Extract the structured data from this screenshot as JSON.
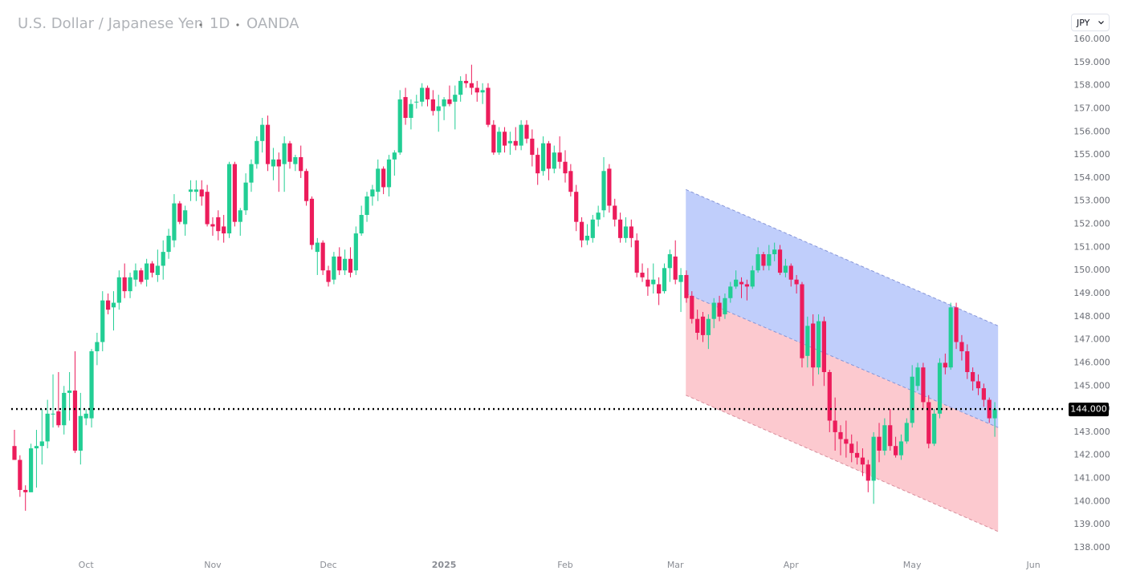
{
  "chart_data": {
    "type": "candlestick",
    "title": "U.S. Dollar / Japanese Yen",
    "interval": "1D",
    "source": "OANDA",
    "currency": "JPY",
    "up_color": "#22ce94",
    "down_color": "#ec1c5b",
    "grid": false,
    "categories": [
      null,
      null,
      null,
      null,
      null,
      null,
      null,
      null,
      null,
      null,
      null,
      null,
      null,
      "Oct",
      null,
      null,
      null,
      null,
      null,
      null,
      null,
      null,
      null,
      null,
      null,
      null,
      null,
      null,
      null,
      null,
      null,
      null,
      null,
      null,
      null,
      null,
      "Nov",
      null,
      null,
      null,
      null,
      null,
      null,
      null,
      null,
      null,
      null,
      null,
      null,
      null,
      null,
      null,
      null,
      null,
      null,
      null,
      null,
      "Dec",
      null,
      null,
      null,
      null,
      null,
      null,
      null,
      null,
      null,
      null,
      null,
      null,
      null,
      null,
      null,
      null,
      null,
      null,
      null,
      null,
      "2025",
      null,
      null,
      null,
      null,
      null,
      null,
      null,
      null,
      null,
      null,
      null,
      null,
      null,
      null,
      null,
      null,
      null,
      null,
      null,
      null,
      null,
      "Feb",
      null,
      null,
      null,
      null,
      null,
      null,
      null,
      null,
      null,
      null,
      null,
      null,
      null,
      null,
      null,
      null,
      null,
      null,
      null,
      "Mar",
      null,
      null,
      null,
      null,
      null,
      null,
      null,
      null,
      null,
      null,
      null,
      null,
      null,
      null,
      null,
      null,
      null,
      null,
      null,
      null,
      "Apr",
      null,
      null,
      null,
      null,
      null,
      null,
      null,
      null,
      null,
      null,
      null,
      null,
      null,
      null,
      null,
      null,
      null,
      null,
      null,
      null,
      null,
      "May",
      null,
      null,
      null,
      null,
      null,
      null,
      null,
      null,
      null,
      null,
      null,
      null,
      null,
      null,
      null,
      null,
      null,
      null,
      null,
      null,
      null,
      "Jun"
    ],
    "open": [
      142.4,
      141.8,
      140.5,
      140.4,
      142.3,
      142.4,
      142.6,
      143.8,
      143.9,
      143.3,
      144.7,
      144.8,
      142.2,
      143.6,
      143.6,
      146.5,
      146.9,
      148.7,
      148.4,
      148.6,
      149.7,
      149.1,
      149.6,
      150.0,
      149.6,
      150.3,
      149.8,
      150.2,
      150.8,
      151.3,
      152.9,
      152.0,
      153.4,
      153.4,
      153.5,
      153.4,
      152.0,
      152.3,
      151.9,
      151.6,
      154.6,
      152.1,
      152.6,
      153.8,
      154.6,
      155.6,
      156.3,
      154.5,
      154.8,
      154.6,
      155.5,
      154.6,
      154.9,
      154.3,
      153.1,
      150.8,
      151.2,
      150.0,
      149.6,
      150.6,
      150.0,
      150.5,
      150.0,
      151.6,
      152.4,
      153.2,
      153.4,
      154.4,
      153.6,
      154.8,
      155.1,
      157.5,
      156.6,
      157.3,
      157.3,
      157.9,
      157.4,
      156.9,
      157.1,
      157.4,
      157.3,
      157.6,
      158.2,
      158.1,
      157.9,
      157.7,
      157.9,
      156.3,
      155.1,
      156.0,
      155.5,
      155.6,
      155.4,
      156.3,
      155.7,
      155.0,
      154.3,
      155.5,
      154.4,
      155.1,
      154.7,
      154.3,
      153.4,
      152.1,
      151.3,
      151.4,
      152.2,
      152.6,
      154.4,
      152.8,
      152.2,
      151.4,
      151.9,
      151.3,
      149.9,
      149.6,
      149.4,
      149.4,
      149.1,
      150.1,
      150.6,
      149.5,
      149.8,
      148.9,
      147.9,
      148.0,
      147.2,
      147.9,
      148.6,
      148.1,
      148.8,
      149.3,
      149.5,
      149.4,
      149.3,
      150.0,
      150.7,
      150.2,
      150.7,
      150.9,
      149.9,
      150.2,
      149.6,
      149.4,
      146.3,
      147.7,
      145.8,
      147.8,
      145.6,
      143.5,
      143.0,
      142.7,
      142.5,
      142.1,
      141.9,
      141.6,
      140.9,
      142.8,
      142.2,
      143.3,
      142.4,
      142.0,
      142.6,
      143.4,
      145.0,
      145.8,
      144.3,
      142.5,
      143.8,
      146.0,
      145.8,
      148.4,
      146.9,
      146.5,
      145.6,
      145.2,
      144.9,
      144.4,
      143.6,
      null,
      null,
      null,
      null,
      null,
      null,
      null
    ],
    "high": [
      143.1,
      142.0,
      140.7,
      142.5,
      143.1,
      144.0,
      144.4,
      145.5,
      145.6,
      145.0,
      145.6,
      146.5,
      144.7,
      144.0,
      146.6,
      147.3,
      149.1,
      149.0,
      149.1,
      150.0,
      150.3,
      149.9,
      150.3,
      150.1,
      150.5,
      150.4,
      150.9,
      151.3,
      151.8,
      153.3,
      153.0,
      152.8,
      153.9,
      153.9,
      153.9,
      153.7,
      152.3,
      152.6,
      152.4,
      154.7,
      154.7,
      152.7,
      154.2,
      154.8,
      155.8,
      156.6,
      156.7,
      155.3,
      155.1,
      155.8,
      155.6,
      155.0,
      155.4,
      154.4,
      153.2,
      151.4,
      151.3,
      150.2,
      150.8,
      151.0,
      150.9,
      151.0,
      151.9,
      152.8,
      153.4,
      153.7,
      154.8,
      154.5,
      155.0,
      155.2,
      157.8,
      157.9,
      157.4,
      157.6,
      158.1,
      158.0,
      157.8,
      157.6,
      157.5,
      158.0,
      158.0,
      158.4,
      158.5,
      158.9,
      158.2,
      158.1,
      158.1,
      156.5,
      156.2,
      156.2,
      156.0,
      156.2,
      156.5,
      156.5,
      156.1,
      155.3,
      155.8,
      155.6,
      155.4,
      155.8,
      155.2,
      154.6,
      153.7,
      152.3,
      152.0,
      152.4,
      152.8,
      154.9,
      154.6,
      153.1,
      152.5,
      152.3,
      152.2,
      151.6,
      150.3,
      150.1,
      150.3,
      149.7,
      150.3,
      150.9,
      151.3,
      150.1,
      150.0,
      149.1,
      148.3,
      148.2,
      148.1,
      148.8,
      148.9,
      149.0,
      149.5,
      150.0,
      149.7,
      149.6,
      150.2,
      151.0,
      150.8,
      151.1,
      151.2,
      151.1,
      150.5,
      150.3,
      149.8,
      149.5,
      148.0,
      148.1,
      148.1,
      148.0,
      145.7,
      144.5,
      143.3,
      143.5,
      142.9,
      142.6,
      142.3,
      141.8,
      143.0,
      143.4,
      143.6,
      144.0,
      142.8,
      142.9,
      143.6,
      145.9,
      146.0,
      146.0,
      144.6,
      144.0,
      146.2,
      146.4,
      148.6,
      148.6,
      147.2,
      146.8,
      145.8,
      145.5,
      145.1,
      144.5,
      144.3,
      null,
      null,
      null,
      null,
      null,
      null,
      null
    ],
    "low": [
      141.8,
      140.2,
      139.6,
      140.4,
      140.6,
      141.6,
      142.3,
      143.2,
      143.2,
      142.9,
      143.5,
      142.1,
      141.6,
      143.3,
      143.2,
      145.9,
      146.5,
      148.1,
      147.4,
      148.3,
      148.8,
      148.8,
      149.3,
      149.4,
      149.3,
      149.7,
      149.5,
      149.6,
      150.5,
      151.0,
      152.0,
      151.5,
      153.0,
      153.0,
      152.8,
      151.9,
      151.5,
      151.3,
      151.2,
      151.4,
      151.9,
      151.5,
      152.4,
      153.4,
      154.4,
      155.1,
      154.3,
      153.9,
      153.4,
      153.4,
      154.4,
      154.3,
      154.0,
      152.8,
      150.9,
      149.8,
      149.8,
      149.3,
      149.4,
      149.8,
      149.8,
      149.7,
      149.8,
      151.5,
      152.1,
      152.8,
      153.0,
      153.3,
      153.2,
      154.1,
      155.0,
      156.3,
      156.1,
      157.0,
      157.1,
      157.1,
      156.7,
      156.0,
      156.5,
      157.1,
      156.1,
      157.3,
      157.9,
      157.6,
      157.3,
      157.2,
      156.2,
      155.0,
      155.0,
      155.1,
      155.0,
      155.2,
      155.2,
      155.5,
      154.5,
      153.7,
      154.1,
      153.9,
      154.2,
      154.4,
      153.8,
      153.2,
      151.7,
      151.0,
      151.1,
      151.2,
      151.9,
      152.3,
      152.5,
      151.9,
      151.2,
      151.2,
      151.0,
      149.7,
      149.5,
      148.9,
      149.0,
      148.5,
      149.0,
      149.5,
      149.4,
      148.2,
      148.6,
      147.7,
      147.0,
      146.9,
      146.6,
      147.5,
      147.8,
      147.9,
      148.6,
      149.2,
      148.8,
      148.7,
      149.2,
      149.9,
      150.0,
      150.0,
      150.4,
      149.8,
      149.7,
      149.3,
      149.0,
      145.8,
      145.8,
      145.0,
      145.5,
      145.0,
      143.0,
      142.2,
      142.0,
      141.9,
      141.7,
      141.6,
      141.1,
      140.4,
      139.9,
      141.7,
      142.0,
      142.2,
      141.9,
      141.8,
      142.5,
      143.2,
      144.8,
      144.0,
      142.3,
      142.4,
      143.6,
      145.5,
      145.7,
      146.6,
      146.1,
      145.3,
      144.8,
      144.6,
      144.1,
      143.4,
      142.8,
      null,
      null,
      null,
      null,
      null,
      null,
      null
    ],
    "close": [
      141.8,
      140.5,
      140.4,
      142.3,
      142.4,
      142.6,
      143.8,
      143.8,
      143.3,
      144.7,
      144.8,
      142.2,
      143.7,
      143.8,
      146.5,
      146.9,
      148.7,
      148.3,
      148.6,
      149.7,
      149.1,
      149.7,
      150.0,
      149.5,
      150.3,
      149.9,
      150.2,
      150.8,
      151.5,
      152.9,
      152.1,
      152.6,
      153.5,
      153.5,
      153.2,
      152.0,
      151.9,
      151.7,
      151.6,
      154.6,
      152.1,
      152.6,
      153.8,
      154.6,
      155.6,
      156.3,
      154.6,
      154.8,
      154.5,
      155.5,
      154.7,
      154.9,
      154.3,
      153.0,
      151.1,
      151.2,
      150.0,
      149.5,
      150.6,
      150.0,
      150.5,
      149.9,
      151.6,
      152.4,
      153.2,
      153.5,
      154.4,
      153.6,
      154.8,
      155.1,
      157.4,
      156.6,
      157.2,
      157.3,
      157.9,
      157.4,
      156.9,
      157.1,
      157.4,
      157.2,
      157.6,
      158.2,
      158.1,
      157.9,
      157.7,
      157.8,
      156.3,
      155.1,
      156.0,
      155.4,
      155.6,
      155.4,
      156.3,
      155.7,
      155.0,
      154.2,
      155.5,
      154.4,
      155.1,
      154.7,
      154.2,
      153.4,
      152.1,
      151.3,
      151.5,
      152.2,
      152.5,
      154.3,
      152.8,
      152.2,
      151.4,
      151.9,
      151.4,
      149.9,
      149.7,
      149.3,
      149.6,
      149.0,
      150.1,
      150.7,
      149.6,
      149.8,
      148.8,
      147.9,
      147.3,
      147.2,
      147.9,
      148.6,
      148.0,
      148.8,
      149.3,
      149.6,
      149.4,
      149.3,
      150.0,
      150.7,
      150.2,
      150.7,
      150.9,
      149.9,
      150.2,
      149.6,
      149.4,
      146.2,
      147.6,
      145.8,
      147.8,
      145.6,
      143.5,
      143.0,
      142.7,
      142.5,
      142.1,
      141.9,
      141.6,
      140.9,
      142.8,
      142.2,
      143.3,
      142.4,
      142.0,
      142.6,
      143.4,
      145.4,
      145.8,
      144.3,
      142.5,
      143.8,
      146.0,
      145.8,
      148.4,
      146.9,
      146.5,
      145.6,
      145.2,
      144.9,
      144.4,
      143.6,
      144.0,
      null,
      null,
      null,
      null,
      null,
      null,
      null
    ],
    "ylim": [
      138,
      160
    ],
    "yticks": [
      {
        "value": 138,
        "label": "138.000"
      },
      {
        "value": 139,
        "label": "139.000"
      },
      {
        "value": 140,
        "label": "140.000"
      },
      {
        "value": 141,
        "label": "141.000"
      },
      {
        "value": 142,
        "label": "142.000"
      },
      {
        "value": 143,
        "label": "143.000"
      },
      {
        "value": 144,
        "label": "144.000"
      },
      {
        "value": 145,
        "label": "145.000"
      },
      {
        "value": 146,
        "label": "146.000"
      },
      {
        "value": 147,
        "label": "147.000"
      },
      {
        "value": 148,
        "label": "148.000"
      },
      {
        "value": 149,
        "label": "149.000"
      },
      {
        "value": 150,
        "label": "150.000"
      },
      {
        "value": 151,
        "label": "151.000"
      },
      {
        "value": 152,
        "label": "152.000"
      },
      {
        "value": 153,
        "label": "153.000"
      },
      {
        "value": 154,
        "label": "154.000"
      },
      {
        "value": 155,
        "label": "155.000"
      },
      {
        "value": 156,
        "label": "156.000"
      },
      {
        "value": 157,
        "label": "157.000"
      },
      {
        "value": 158,
        "label": "158.000"
      },
      {
        "value": 159,
        "label": "159.000"
      },
      {
        "value": 160,
        "label": "160.000"
      }
    ],
    "price_line": {
      "value": 144,
      "label": "144.000",
      "color": "#000000"
    },
    "channel": {
      "x": [
        121.9,
        178.6
      ],
      "upper": [
        153.5,
        147.6
      ],
      "middle": [
        149.0,
        143.2
      ],
      "lower": [
        144.6,
        138.7
      ],
      "upper_fill": "#b9c9fb",
      "lower_fill": "#fcc3ca",
      "upper_line": "#8796d8",
      "lower_line": "#d88e9c"
    }
  }
}
